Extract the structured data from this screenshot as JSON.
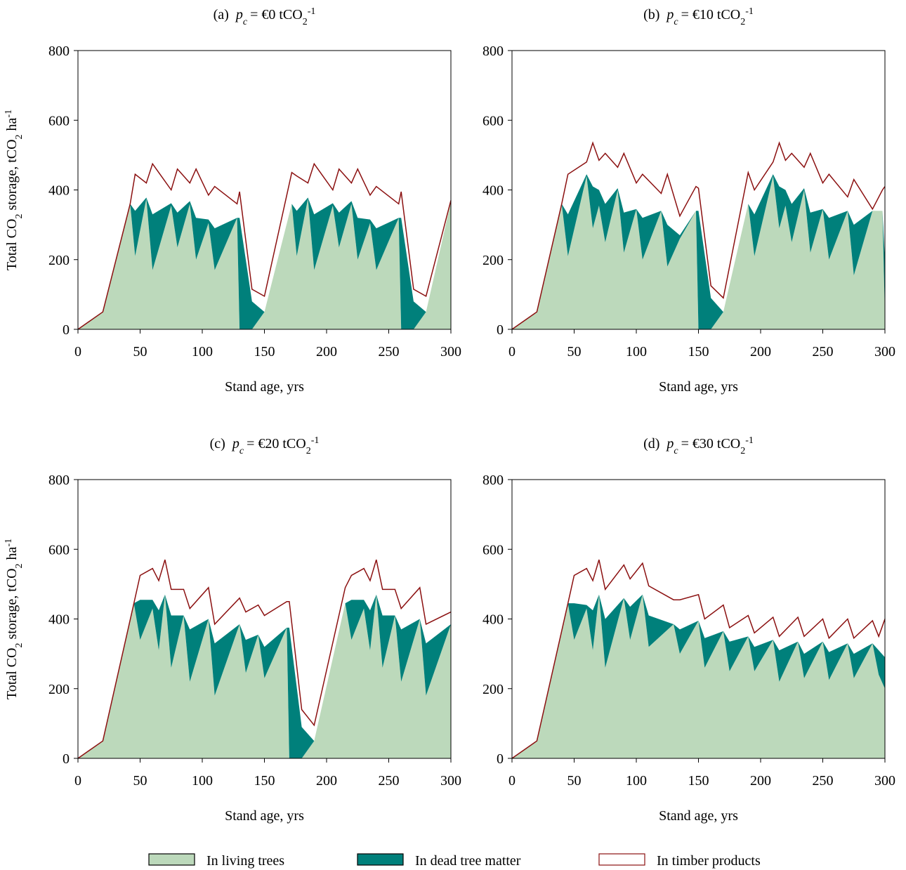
{
  "chart_data": [
    {
      "type": "stacked-area",
      "title": {
        "label": "(a)",
        "symbol": "p",
        "symbol_sub": "c",
        "text": "= €0 tCO",
        "sub": "2",
        "sup": "-1"
      },
      "xlabel": "Stand age, yrs",
      "ylabel": [
        "Total CO",
        "2",
        " storage, tCO",
        "2",
        " ha",
        "-1"
      ],
      "xlim": [
        0,
        300
      ],
      "xticks": [
        0,
        50,
        100,
        150,
        200,
        250,
        300
      ],
      "ylim": [
        0,
        800
      ],
      "yticks": [
        0,
        200,
        400,
        600,
        800
      ],
      "x": [
        0,
        20,
        42,
        46,
        55,
        60,
        75,
        80,
        90,
        95,
        105,
        110,
        128,
        130,
        140,
        150,
        172,
        176,
        185,
        190,
        205,
        210,
        220,
        225,
        235,
        240,
        258,
        260,
        270,
        280,
        300
      ],
      "series": [
        {
          "name": "In living trees",
          "color": "#bcd9bb",
          "values": [
            0,
            50,
            360,
            210,
            375,
            170,
            355,
            235,
            360,
            200,
            305,
            170,
            320,
            0,
            0,
            50,
            360,
            210,
            375,
            170,
            355,
            235,
            360,
            200,
            305,
            170,
            320,
            0,
            0,
            50,
            365
          ]
        },
        {
          "name": "In dead tree matter",
          "color": "#00807b",
          "values": [
            0,
            0,
            0,
            130,
            3,
            160,
            7,
            100,
            8,
            120,
            10,
            120,
            0,
            320,
            80,
            0,
            0,
            130,
            3,
            160,
            7,
            100,
            8,
            120,
            10,
            120,
            0,
            320,
            80,
            0,
            0
          ]
        },
        {
          "name": "In timber products",
          "color": "#8b1010",
          "values": [
            0,
            0,
            0,
            105,
            42,
            145,
            38,
            125,
            52,
            140,
            70,
            120,
            40,
            75,
            35,
            45,
            90,
            100,
            42,
            145,
            38,
            125,
            52,
            140,
            70,
            120,
            40,
            75,
            35,
            45,
            5
          ]
        }
      ]
    },
    {
      "type": "stacked-area",
      "title": {
        "label": "(b)",
        "symbol": "p",
        "symbol_sub": "c",
        "text": "= €10 tCO",
        "sub": "2",
        "sup": "-1"
      },
      "xlabel": "Stand age, yrs",
      "xlim": [
        0,
        300
      ],
      "xticks": [
        0,
        50,
        100,
        150,
        200,
        250,
        300
      ],
      "ylim": [
        0,
        800
      ],
      "yticks": [
        0,
        200,
        400,
        600,
        800
      ],
      "x": [
        0,
        20,
        40,
        45,
        60,
        65,
        70,
        75,
        85,
        90,
        100,
        105,
        120,
        125,
        135,
        148,
        150,
        160,
        170,
        190,
        195,
        210,
        215,
        220,
        225,
        235,
        240,
        250,
        255,
        270,
        275,
        290,
        298,
        300
      ],
      "series": [
        {
          "name": "In living trees",
          "color": "#bcd9bb",
          "values": [
            0,
            50,
            360,
            210,
            440,
            290,
            355,
            250,
            400,
            220,
            345,
            200,
            340,
            180,
            260,
            340,
            0,
            0,
            50,
            360,
            210,
            440,
            290,
            355,
            250,
            400,
            220,
            345,
            200,
            340,
            155,
            340,
            340,
            40
          ]
        },
        {
          "name": "In dead tree matter",
          "color": "#00807b",
          "values": [
            0,
            0,
            0,
            120,
            5,
            120,
            45,
            110,
            5,
            115,
            0,
            120,
            0,
            120,
            10,
            0,
            340,
            90,
            0,
            0,
            120,
            5,
            120,
            45,
            110,
            5,
            115,
            0,
            120,
            0,
            145,
            0,
            0,
            160
          ]
        },
        {
          "name": "In timber products",
          "color": "#8b1010",
          "values": [
            0,
            0,
            0,
            115,
            35,
            125,
            85,
            145,
            60,
            170,
            75,
            125,
            50,
            145,
            55,
            70,
            65,
            35,
            40,
            90,
            70,
            35,
            125,
            85,
            145,
            60,
            170,
            75,
            125,
            40,
            130,
            5,
            60,
            210
          ]
        }
      ]
    },
    {
      "type": "stacked-area",
      "title": {
        "label": "(c)",
        "symbol": "p",
        "symbol_sub": "c",
        "text": "= €20 tCO",
        "sub": "2",
        "sup": "-1"
      },
      "xlabel": "Stand age, yrs",
      "ylabel": [
        "Total CO",
        "2",
        " storage, tCO",
        "2",
        " ha",
        "-1"
      ],
      "xlim": [
        0,
        300
      ],
      "xticks": [
        0,
        50,
        100,
        150,
        200,
        250,
        300
      ],
      "ylim": [
        0,
        800
      ],
      "yticks": [
        0,
        200,
        400,
        600,
        800
      ],
      "x": [
        0,
        20,
        45,
        50,
        60,
        65,
        70,
        75,
        85,
        90,
        105,
        110,
        130,
        135,
        145,
        150,
        168,
        170,
        180,
        190,
        215,
        220,
        230,
        235,
        240,
        245,
        255,
        260,
        275,
        280,
        300
      ],
      "series": [
        {
          "name": "In living trees",
          "color": "#bcd9bb",
          "values": [
            0,
            50,
            445,
            340,
            430,
            310,
            470,
            260,
            410,
            220,
            400,
            180,
            385,
            245,
            355,
            230,
            375,
            0,
            0,
            50,
            445,
            340,
            430,
            310,
            470,
            260,
            410,
            220,
            400,
            180,
            385
          ]
        },
        {
          "name": "In dead tree matter",
          "color": "#00807b",
          "values": [
            0,
            0,
            0,
            115,
            25,
            115,
            0,
            150,
            0,
            150,
            0,
            150,
            0,
            95,
            0,
            90,
            0,
            375,
            90,
            0,
            0,
            115,
            25,
            115,
            0,
            150,
            0,
            150,
            0,
            150,
            0
          ]
        },
        {
          "name": "In timber products",
          "color": "#8b1010",
          "values": [
            0,
            0,
            0,
            70,
            90,
            85,
            100,
            75,
            75,
            60,
            90,
            55,
            75,
            80,
            85,
            90,
            75,
            75,
            50,
            45,
            45,
            70,
            90,
            85,
            100,
            75,
            75,
            60,
            90,
            55,
            35
          ]
        }
      ]
    },
    {
      "type": "stacked-area",
      "title": {
        "label": "(d)",
        "symbol": "p",
        "symbol_sub": "c",
        "text": "= €30 tCO",
        "sub": "2",
        "sup": "-1"
      },
      "xlabel": "Stand age, yrs",
      "xlim": [
        0,
        300
      ],
      "xticks": [
        0,
        50,
        100,
        150,
        200,
        250,
        300
      ],
      "ylim": [
        0,
        800
      ],
      "yticks": [
        0,
        200,
        400,
        600,
        800
      ],
      "x": [
        0,
        20,
        45,
        50,
        60,
        65,
        70,
        75,
        90,
        95,
        105,
        110,
        130,
        135,
        150,
        155,
        170,
        175,
        190,
        195,
        210,
        215,
        230,
        235,
        250,
        255,
        270,
        275,
        290,
        295,
        300
      ],
      "series": [
        {
          "name": "In living trees",
          "color": "#bcd9bb",
          "values": [
            0,
            50,
            445,
            340,
            430,
            310,
            470,
            260,
            460,
            340,
            470,
            320,
            385,
            300,
            395,
            260,
            365,
            250,
            350,
            250,
            340,
            220,
            335,
            230,
            335,
            225,
            330,
            230,
            330,
            240,
            200
          ]
        },
        {
          "name": "In dead tree matter",
          "color": "#00807b",
          "values": [
            0,
            0,
            0,
            105,
            10,
            115,
            0,
            140,
            0,
            95,
            0,
            90,
            0,
            70,
            0,
            85,
            0,
            85,
            0,
            70,
            0,
            90,
            0,
            70,
            0,
            80,
            0,
            70,
            0,
            70,
            90
          ]
        },
        {
          "name": "In timber products",
          "color": "#8b1010",
          "values": [
            0,
            0,
            0,
            80,
            105,
            85,
            100,
            85,
            95,
            80,
            90,
            85,
            70,
            85,
            75,
            55,
            75,
            40,
            60,
            40,
            65,
            40,
            70,
            50,
            65,
            40,
            70,
            45,
            65,
            40,
            110
          ]
        }
      ]
    }
  ]
}
